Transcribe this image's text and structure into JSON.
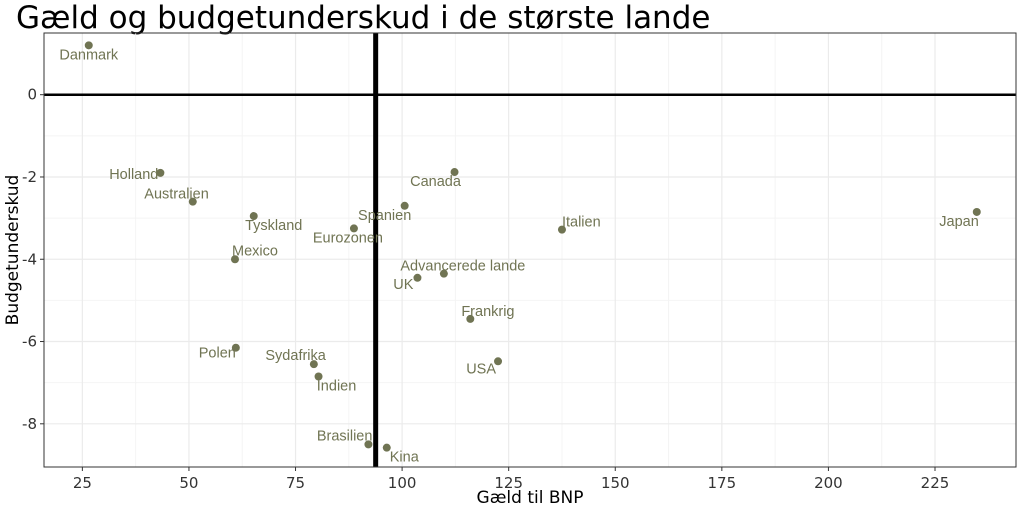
{
  "chart_data": {
    "type": "scatter",
    "title": "Gæld og budgetunderskud i de største lande",
    "xlabel": "Gæld til BNP",
    "ylabel": "Budgetunderskud",
    "xlim": [
      16,
      244
    ],
    "ylim": [
      -9.05,
      1.5
    ],
    "xticks": [
      "25",
      "50",
      "75",
      "100",
      "125",
      "150",
      "175",
      "200",
      "225"
    ],
    "yticks": [
      "0",
      "-2",
      "-4",
      "-6",
      "-8"
    ],
    "grid": true,
    "reference_lines": {
      "y": 0,
      "x": 93.8
    },
    "colors": {
      "point": "#707453",
      "grid_major": "#ebebeb",
      "grid_minor": "#f4f4f4",
      "reference": "#000000"
    },
    "points": [
      {
        "label": "Danmark",
        "x": 26.5,
        "y": 1.2,
        "ha": "middle",
        "dx": 0,
        "dy": 14
      },
      {
        "label": "Holland",
        "x": 43.3,
        "y": -1.9,
        "ha": "end",
        "dx": -2,
        "dy": 6
      },
      {
        "label": "Australien",
        "x": 50.9,
        "y": -2.6,
        "ha": "end",
        "dx": 16,
        "dy": -3
      },
      {
        "label": "Tyskland",
        "x": 65.2,
        "y": -2.95,
        "ha": "middle",
        "dx": 20,
        "dy": 14
      },
      {
        "label": "Mexico",
        "x": 60.8,
        "y": -4.0,
        "ha": "middle",
        "dx": 20,
        "dy": -4
      },
      {
        "label": "Polen",
        "x": 61.0,
        "y": -6.15,
        "ha": "end",
        "dx": 0,
        "dy": 10
      },
      {
        "label": "Sydafrika",
        "x": 79.3,
        "y": -6.55,
        "ha": "end",
        "dx": 12,
        "dy": -4
      },
      {
        "label": "Indien",
        "x": 80.4,
        "y": -6.85,
        "ha": "middle",
        "dx": 18,
        "dy": 14
      },
      {
        "label": "Eurozonen",
        "x": 88.7,
        "y": -3.25,
        "ha": "middle",
        "dx": -6,
        "dy": 14
      },
      {
        "label": "Spanien",
        "x": 100.6,
        "y": -2.7,
        "ha": "middle",
        "dx": -20,
        "dy": 14
      },
      {
        "label": "Canada",
        "x": 112.3,
        "y": -1.88,
        "ha": "middle",
        "dx": -19,
        "dy": 14
      },
      {
        "label": "Italien",
        "x": 137.5,
        "y": -3.28,
        "ha": "start",
        "dx": 0,
        "dy": -3
      },
      {
        "label": "Japan",
        "x": 234.8,
        "y": -2.85,
        "ha": "end",
        "dx": 2,
        "dy": 14
      },
      {
        "label": "Advancerede lande",
        "x": 109.8,
        "y": -4.35,
        "ha": "middle",
        "dx": 19,
        "dy": -3
      },
      {
        "label": "UK",
        "x": 103.6,
        "y": -4.45,
        "ha": "end",
        "dx": -4,
        "dy": 11
      },
      {
        "label": "Frankrig",
        "x": 116.0,
        "y": -5.45,
        "ha": "start",
        "dx": -9,
        "dy": -3
      },
      {
        "label": "USA",
        "x": 122.5,
        "y": -6.48,
        "ha": "end",
        "dx": -2,
        "dy": 12
      },
      {
        "label": "Brasilien",
        "x": 92.1,
        "y": -8.5,
        "ha": "end",
        "dx": 4,
        "dy": -4
      },
      {
        "label": "Kina",
        "x": 96.4,
        "y": -8.58,
        "ha": "start",
        "dx": 3,
        "dy": 14
      }
    ]
  }
}
